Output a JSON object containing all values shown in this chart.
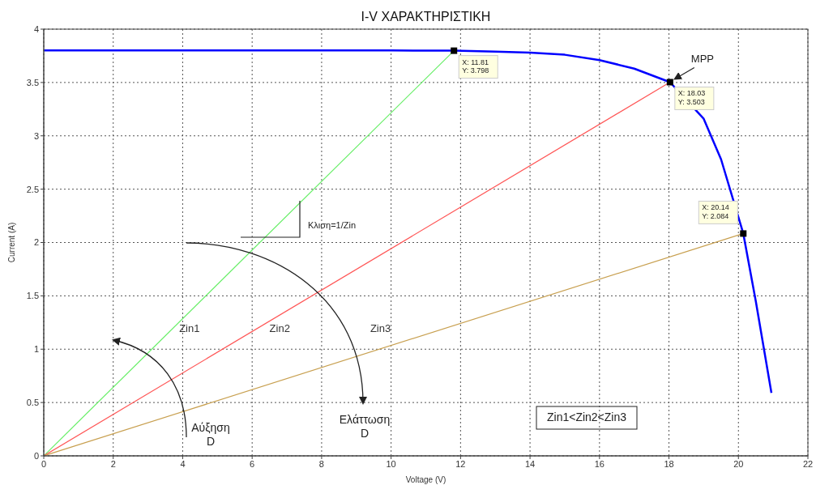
{
  "chart_data": {
    "type": "line",
    "title": "I-V ΧΑΡΑΚΤΗΡΙΣΤΙΚΗ",
    "xlabel": "Voltage (V)",
    "ylabel": "Current (A)",
    "xlim": [
      0,
      22
    ],
    "xticks": [
      0,
      2,
      4,
      6,
      8,
      10,
      12,
      14,
      16,
      18,
      20,
      22
    ],
    "ylim": [
      0,
      4
    ],
    "yticks": [
      0,
      0.5,
      1,
      1.5,
      2,
      2.5,
      3,
      3.5,
      4
    ],
    "grid": true,
    "marker": "none",
    "series": [
      {
        "color": "#0000ff",
        "x": [
          0,
          10,
          11.81,
          13,
          14,
          15,
          16,
          17,
          18.03,
          19,
          19.5,
          20.14,
          20.5,
          20.95
        ],
        "values": [
          3.8,
          3.8,
          3.798,
          3.79,
          3.78,
          3.76,
          3.71,
          3.63,
          3.503,
          3.16,
          2.78,
          2.084,
          1.45,
          0.59
        ]
      },
      {
        "name": "Zin1",
        "color": "#66ee66",
        "x": [
          0,
          11.81
        ],
        "values": [
          0,
          3.798
        ]
      },
      {
        "name": "Zin2",
        "color": "#ff5555",
        "x": [
          0,
          18.03
        ],
        "values": [
          0,
          3.503
        ]
      },
      {
        "name": "Zin3",
        "color": "#c8a050",
        "x": [
          0,
          20.14
        ],
        "values": [
          0,
          2.084
        ]
      },
      {
        "type": "scatter",
        "marker": "square",
        "color": "#000000",
        "x": [
          11.81,
          18.03,
          20.14
        ],
        "values": [
          3.798,
          3.503,
          2.084
        ]
      }
    ],
    "annotations": [
      {
        "text": "X: 11.81\nY: 3.798",
        "x": 11.81,
        "y": 3.798
      },
      {
        "text": "X: 18.03\nY: 3.503",
        "x": 18.03,
        "y": 3.503
      },
      {
        "text": "X: 20.14\nY: 2.084",
        "x": 20.14,
        "y": 2.084
      },
      {
        "text": "MPP",
        "x": 18.03,
        "y": 3.503
      },
      "Κλιση=1/Zin",
      "Αύξηση\nD",
      "Ελάττωση\nD",
      "Zin1<Zin2<Zin3"
    ]
  }
}
